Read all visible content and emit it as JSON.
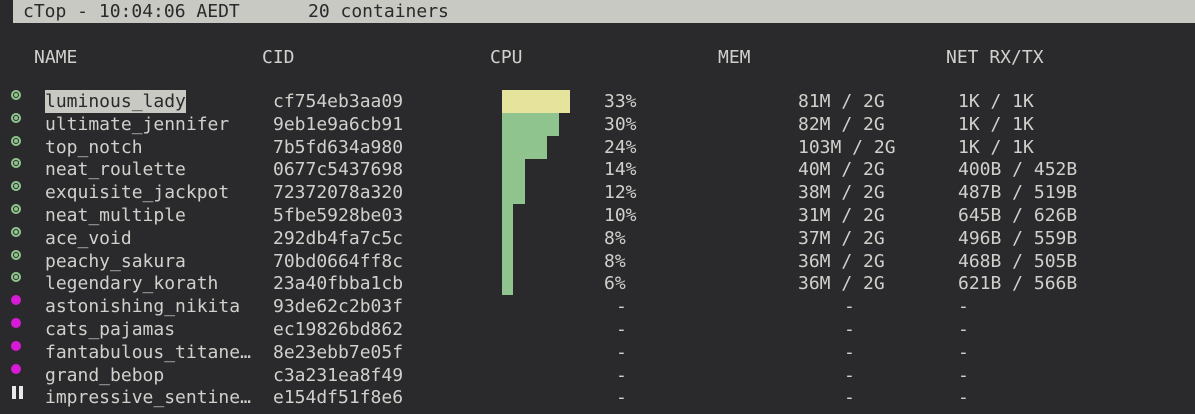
{
  "header": {
    "title": "cTop - 10:04:06 AEDT",
    "count": "20 containers"
  },
  "columns": [
    "NAME",
    "CID",
    "CPU",
    "MEM",
    "NET RX/TX"
  ],
  "colors": {
    "running": "#8fc48f",
    "stopped": "#d61ad6",
    "cpu_bar": "#8fc48f",
    "cpu_bar_selected": "#e6e49c"
  },
  "selected_index": 0,
  "containers": [
    {
      "status": "running",
      "name": "luminous_lady",
      "cid": "cf754eb3aa09",
      "cpu": "33%",
      "cpu_pct": 33,
      "mem": "81M / 2G",
      "net": "1K / 1K"
    },
    {
      "status": "running",
      "name": "ultimate_jennifer",
      "cid": "9eb1e9a6cb91",
      "cpu": "30%",
      "cpu_pct": 30,
      "mem": "82M / 2G",
      "net": "1K / 1K"
    },
    {
      "status": "running",
      "name": "top_notch",
      "cid": "7b5fd634a980",
      "cpu": "24%",
      "cpu_pct": 24,
      "mem": "103M / 2G",
      "net": "1K / 1K"
    },
    {
      "status": "running",
      "name": "neat_roulette",
      "cid": "0677c5437698",
      "cpu": "14%",
      "cpu_pct": 14,
      "mem": "40M / 2G",
      "net": "400B / 452B"
    },
    {
      "status": "running",
      "name": "exquisite_jackpot",
      "cid": "72372078a320",
      "cpu": "12%",
      "cpu_pct": 12,
      "mem": "38M / 2G",
      "net": "487B / 519B"
    },
    {
      "status": "running",
      "name": "neat_multiple",
      "cid": "5fbe5928be03",
      "cpu": "10%",
      "cpu_pct": 10,
      "mem": "31M / 2G",
      "net": "645B / 626B"
    },
    {
      "status": "running",
      "name": "ace_void",
      "cid": "292db4fa7c5c",
      "cpu": "8%",
      "cpu_pct": 8,
      "mem": "37M / 2G",
      "net": "496B / 559B"
    },
    {
      "status": "running",
      "name": "peachy_sakura",
      "cid": "70bd0664ff8c",
      "cpu": "8%",
      "cpu_pct": 8,
      "mem": "36M / 2G",
      "net": "468B / 505B"
    },
    {
      "status": "running",
      "name": "legendary_korath",
      "cid": "23a40fbba1cb",
      "cpu": "6%",
      "cpu_pct": 6,
      "mem": "36M / 2G",
      "net": "621B / 566B"
    },
    {
      "status": "stopped",
      "name": "astonishing_nikita",
      "cid": "93de62c2b03f",
      "cpu": "-",
      "mem": "-",
      "net": "-"
    },
    {
      "status": "stopped",
      "name": "cats_pajamas",
      "cid": "ec19826bd862",
      "cpu": "-",
      "mem": "-",
      "net": "-"
    },
    {
      "status": "stopped",
      "name": "fantabulous_titane…",
      "cid": "8e23ebb7e05f",
      "cpu": "-",
      "mem": "-",
      "net": "-"
    },
    {
      "status": "stopped",
      "name": "grand_bebop",
      "cid": "c3a231ea8f49",
      "cpu": "-",
      "mem": "-",
      "net": "-"
    },
    {
      "status": "paused",
      "name": "impressive_sentine…",
      "cid": "e154df51f8e6",
      "cpu": "-",
      "mem": "-",
      "net": "-"
    }
  ]
}
